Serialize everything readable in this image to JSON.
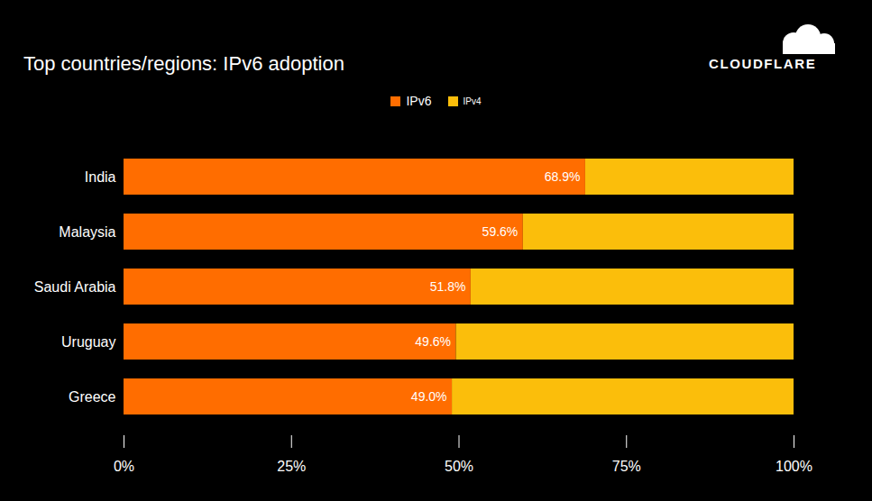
{
  "chart_data": {
    "type": "bar",
    "title": "Top countries/regions: IPv6 adoption",
    "brand": "CLOUDFLARE",
    "orientation": "horizontal",
    "stacked": true,
    "legend": "top",
    "grid": false,
    "categories": [
      "India",
      "Malaysia",
      "Saudi Arabia",
      "Uruguay",
      "Greece"
    ],
    "series": [
      {
        "name": "IPv6",
        "color": "#ff6d00",
        "values": [
          68.9,
          59.6,
          51.8,
          49.6,
          49.0
        ],
        "data_labels": true,
        "value_labels": [
          "68.9%",
          "59.6%",
          "51.8%",
          "49.6%",
          "49.0%"
        ]
      },
      {
        "name": "IPv4",
        "color": "#fbbe0b",
        "values": [
          31.1,
          40.4,
          48.2,
          50.4,
          51.0
        ],
        "data_labels": false
      }
    ],
    "xlim": [
      0,
      100
    ],
    "xticks": [
      {
        "value": 0,
        "label": "0%"
      },
      {
        "value": 25,
        "label": "25%"
      },
      {
        "value": 50,
        "label": "50%"
      },
      {
        "value": 75,
        "label": "75%"
      },
      {
        "value": 100,
        "label": "100%"
      }
    ]
  }
}
